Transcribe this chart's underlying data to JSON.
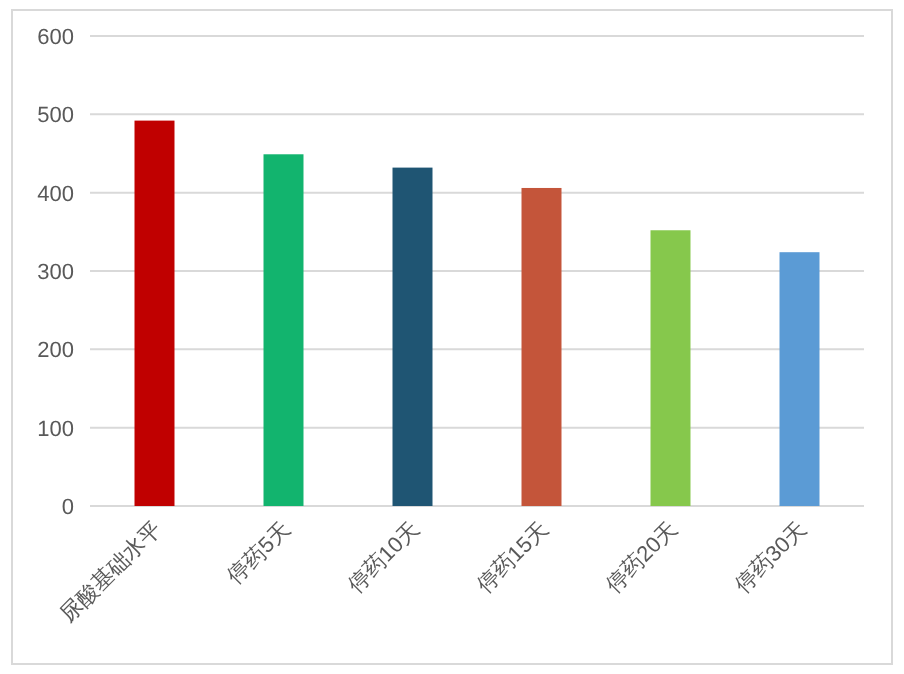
{
  "chart_data": {
    "type": "bar",
    "categories": [
      "尿酸基础水平",
      "停药5天",
      "停药10天",
      "停药15天",
      "停药20天",
      "停药30天"
    ],
    "values": [
      492,
      449,
      432,
      406,
      352,
      324
    ],
    "colors": [
      "#c00000",
      "#12b46e",
      "#1f5573",
      "#c4553a",
      "#86c84c",
      "#5b9bd5"
    ],
    "ylim": [
      0,
      600
    ],
    "yticks": [
      0,
      100,
      200,
      300,
      400,
      500,
      600
    ],
    "grid": "y"
  }
}
